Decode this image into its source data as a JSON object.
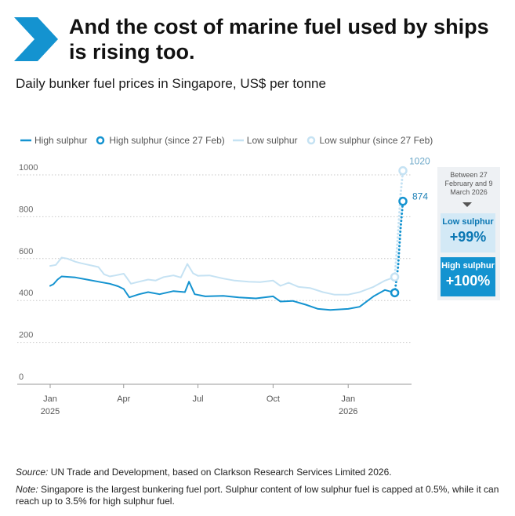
{
  "header": {
    "title": "And the cost of marine fuel used by ships is rising too.",
    "subtitle": "Daily bunker fuel prices in Singapore, US$ per tonne",
    "chevron_icon": "chevron-right-icon",
    "accent_color": "#1493d0"
  },
  "legend": {
    "items": [
      {
        "label": "High sulphur",
        "style": "line",
        "color": "#1493d0"
      },
      {
        "label": "High sulphur (since 27 Feb)",
        "style": "dotted-circle",
        "color": "#1493d0"
      },
      {
        "label": "Low sulphur",
        "style": "line",
        "color": "#c5e2f3"
      },
      {
        "label": "Low sulphur (since 27 Feb)",
        "style": "dotted-circle",
        "color": "#c5e2f3"
      }
    ]
  },
  "side_panel": {
    "caption": "Between 27 February and 9 March 2026",
    "low": {
      "label": "Low sulphur",
      "value": "+99%"
    },
    "high": {
      "label": "High sulphur",
      "value": "+100%"
    }
  },
  "footer": {
    "source_prefix": "Source:",
    "source_text": " UN Trade and Development, based on Clarkson Research Services Limited 2026.",
    "note_prefix": "Note:",
    "note_text": " Singapore is the largest bunkering fuel port. Sulphur content of low sulphur fuel is capped at 0.5%, while it can reach up to 3.5% for high sulphur fuel."
  },
  "chart_data": {
    "type": "line",
    "title": "Daily bunker fuel prices in Singapore, US$ per tonne",
    "ylim": [
      0,
      1000
    ],
    "y_ticks": [
      0,
      200,
      400,
      600,
      800,
      1000
    ],
    "x_ticks": [
      {
        "date": "2025-01-01",
        "label": "Jan",
        "sublabel": "2025"
      },
      {
        "date": "2025-04-01",
        "label": "Apr",
        "sublabel": ""
      },
      {
        "date": "2025-07-01",
        "label": "Jul",
        "sublabel": ""
      },
      {
        "date": "2025-10-01",
        "label": "Oct",
        "sublabel": ""
      },
      {
        "date": "2026-01-01",
        "label": "Jan",
        "sublabel": "2026"
      }
    ],
    "grid": "horizontal dotted",
    "series": [
      {
        "name": "Low sulphur",
        "color": "#c5e2f3",
        "points": [
          [
            "2025-01-01",
            565
          ],
          [
            "2025-01-08",
            570
          ],
          [
            "2025-01-15",
            605
          ],
          [
            "2025-01-22",
            600
          ],
          [
            "2025-02-01",
            585
          ],
          [
            "2025-02-08",
            578
          ],
          [
            "2025-02-15",
            572
          ],
          [
            "2025-02-22",
            566
          ],
          [
            "2025-03-01",
            560
          ],
          [
            "2025-03-08",
            525
          ],
          [
            "2025-03-15",
            515
          ],
          [
            "2025-03-22",
            520
          ],
          [
            "2025-04-01",
            528
          ],
          [
            "2025-04-05",
            508
          ],
          [
            "2025-04-10",
            480
          ],
          [
            "2025-04-20",
            490
          ],
          [
            "2025-05-01",
            500
          ],
          [
            "2025-05-10",
            495
          ],
          [
            "2025-05-20",
            512
          ],
          [
            "2025-06-01",
            520
          ],
          [
            "2025-06-10",
            510
          ],
          [
            "2025-06-18",
            575
          ],
          [
            "2025-06-25",
            530
          ],
          [
            "2025-07-01",
            518
          ],
          [
            "2025-07-15",
            520
          ],
          [
            "2025-08-01",
            505
          ],
          [
            "2025-08-15",
            495
          ],
          [
            "2025-09-01",
            490
          ],
          [
            "2025-09-15",
            488
          ],
          [
            "2025-10-01",
            495
          ],
          [
            "2025-10-10",
            470
          ],
          [
            "2025-10-20",
            485
          ],
          [
            "2025-11-01",
            465
          ],
          [
            "2025-11-15",
            460
          ],
          [
            "2025-12-01",
            440
          ],
          [
            "2025-12-15",
            428
          ],
          [
            "2026-01-01",
            428
          ],
          [
            "2026-01-15",
            440
          ],
          [
            "2026-02-01",
            465
          ],
          [
            "2026-02-15",
            495
          ],
          [
            "2026-02-27",
            512
          ]
        ]
      },
      {
        "name": "Low sulphur (since 27 Feb)",
        "color": "#c5e2f3",
        "points": [
          [
            "2026-02-27",
            512
          ],
          [
            "2026-03-03",
            720
          ],
          [
            "2026-03-06",
            900
          ],
          [
            "2026-03-09",
            1020
          ]
        ]
      },
      {
        "name": "High sulphur",
        "color": "#1493d0",
        "points": [
          [
            "2025-01-01",
            470
          ],
          [
            "2025-01-05",
            478
          ],
          [
            "2025-01-10",
            500
          ],
          [
            "2025-01-15",
            515
          ],
          [
            "2025-02-01",
            510
          ],
          [
            "2025-02-15",
            500
          ],
          [
            "2025-03-01",
            490
          ],
          [
            "2025-03-15",
            480
          ],
          [
            "2025-03-25",
            468
          ],
          [
            "2025-04-01",
            455
          ],
          [
            "2025-04-08",
            415
          ],
          [
            "2025-04-20",
            430
          ],
          [
            "2025-05-01",
            440
          ],
          [
            "2025-05-15",
            430
          ],
          [
            "2025-06-01",
            445
          ],
          [
            "2025-06-15",
            440
          ],
          [
            "2025-06-20",
            490
          ],
          [
            "2025-06-27",
            430
          ],
          [
            "2025-07-10",
            420
          ],
          [
            "2025-08-01",
            422
          ],
          [
            "2025-08-20",
            415
          ],
          [
            "2025-09-10",
            410
          ],
          [
            "2025-10-01",
            420
          ],
          [
            "2025-10-10",
            395
          ],
          [
            "2025-10-25",
            398
          ],
          [
            "2025-11-10",
            380
          ],
          [
            "2025-11-25",
            360
          ],
          [
            "2025-12-10",
            355
          ],
          [
            "2026-01-01",
            360
          ],
          [
            "2026-01-15",
            370
          ],
          [
            "2026-02-01",
            420
          ],
          [
            "2026-02-15",
            450
          ],
          [
            "2026-02-27",
            437
          ]
        ]
      },
      {
        "name": "High sulphur (since 27 Feb)",
        "color": "#1493d0",
        "points": [
          [
            "2026-02-27",
            437
          ],
          [
            "2026-03-03",
            560
          ],
          [
            "2026-03-06",
            740
          ],
          [
            "2026-03-09",
            874
          ]
        ]
      }
    ],
    "annotations": [
      {
        "date": "2026-03-09",
        "value": 1020,
        "label": "1020"
      },
      {
        "date": "2026-03-09",
        "value": 874,
        "label": "874"
      }
    ]
  }
}
